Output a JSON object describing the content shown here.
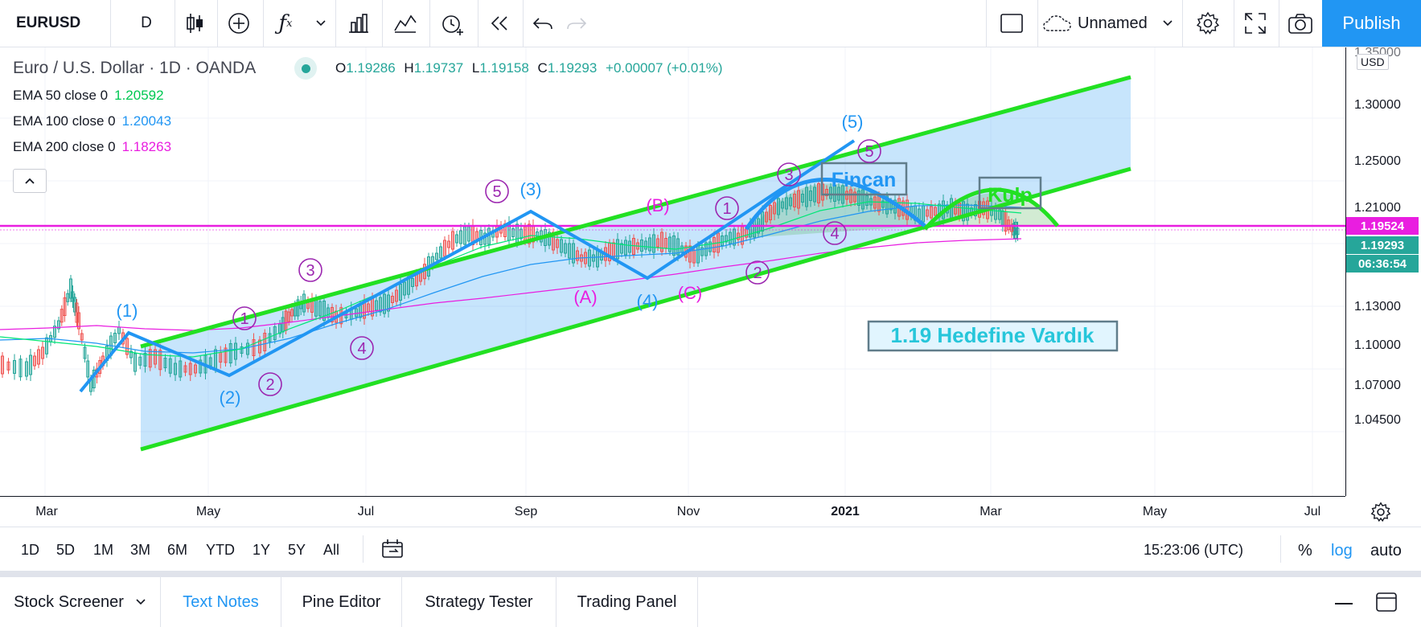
{
  "toolbar": {
    "symbol": "EURUSD",
    "interval": "D",
    "layout_name": "Unnamed",
    "publish_label": "Publish"
  },
  "legend": {
    "title": "Euro / U.S. Dollar · 1D · OANDA",
    "o_label": "O",
    "o_value": "1.19286",
    "h_label": "H",
    "h_value": "1.19737",
    "l_label": "L",
    "l_value": "1.19158",
    "c_label": "C",
    "c_value": "1.19293",
    "change": "+0.00007 (+0.01%)"
  },
  "indicators": [
    {
      "label": "EMA 50 close 0",
      "value": "1.20592",
      "color": "#00e676"
    },
    {
      "label": "EMA 100 close 0",
      "value": "1.20043",
      "color": "#2196f3"
    },
    {
      "label": "EMA 200 close 0",
      "value": "1.18263",
      "color": "#e91ee0"
    }
  ],
  "price_scale": {
    "labels": [
      "1.35000",
      "1.30000",
      "1.25000",
      "1.21000",
      "1.13000",
      "1.10000",
      "1.07000",
      "1.04500"
    ],
    "currency": "USD",
    "tag_line": "1.19524",
    "tag_last": "1.19293",
    "tag_countdown": "06:36:54"
  },
  "time_scale": {
    "labels": [
      "Mar",
      "May",
      "Jul",
      "Sep",
      "Nov",
      "2021",
      "Mar",
      "May",
      "Jul"
    ]
  },
  "annotations": {
    "blue_waves": [
      "(1)",
      "(2)",
      "(3)",
      "(4)",
      "(5)"
    ],
    "purple_circles": [
      "1",
      "2",
      "3",
      "4",
      "5",
      "1",
      "2",
      "3",
      "4",
      "5"
    ],
    "corrective": [
      "(A)",
      "(B)",
      "(C)"
    ],
    "cup_label": "Fincan",
    "handle_label": "Kulp",
    "target_text": "1.19 Hedefine Vardık"
  },
  "range_buttons": [
    "1D",
    "5D",
    "1M",
    "3M",
    "6M",
    "YTD",
    "1Y",
    "5Y",
    "All"
  ],
  "bottom_right": {
    "clock": "15:23:06 (UTC)",
    "percent": "%",
    "log": "log",
    "auto": "auto"
  },
  "tabs": [
    "Stock Screener",
    "Text Notes",
    "Pine Editor",
    "Strategy Tester",
    "Trading Panel"
  ],
  "colors": {
    "accent": "#2196f3",
    "up": "#26a69a",
    "channel": "#22e022",
    "horizontal_line": "#e91ee0"
  }
}
